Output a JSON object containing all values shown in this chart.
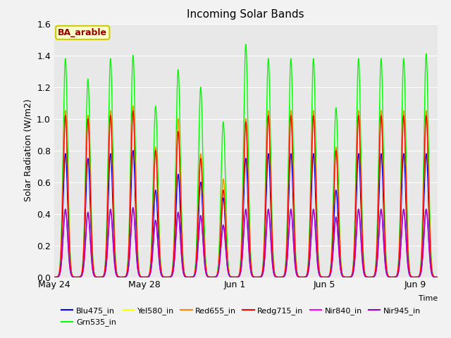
{
  "title": "Incoming Solar Bands",
  "ylabel": "Solar Radiation (W/m2)",
  "xlabel": "Time",
  "annotation_text": "BA_arable",
  "annotation_bg": "#ffffcc",
  "annotation_border": "#cccc00",
  "annotation_text_color": "#990000",
  "fig_bg_color": "#f2f2f2",
  "plot_bg_color": "#e8e8e8",
  "ylim": [
    0.0,
    1.6
  ],
  "yticks": [
    0.0,
    0.2,
    0.4,
    0.6,
    0.8,
    1.0,
    1.2,
    1.4,
    1.6
  ],
  "x_tick_labels": [
    "May 24",
    "May 28",
    "Jun 1",
    "Jun 5",
    "Jun 9"
  ],
  "series": [
    {
      "name": "Blu475_in",
      "color": "#0000ff",
      "lw": 1.0
    },
    {
      "name": "Grn535_in",
      "color": "#00ff00",
      "lw": 1.0
    },
    {
      "name": "Yel580_in",
      "color": "#ffff00",
      "lw": 1.0
    },
    {
      "name": "Red655_in",
      "color": "#ff8800",
      "lw": 1.0
    },
    {
      "name": "Redg715_in",
      "color": "#ff0000",
      "lw": 1.0
    },
    {
      "name": "Nir840_in",
      "color": "#ff00ff",
      "lw": 1.0
    },
    {
      "name": "Nir945_in",
      "color": "#9900cc",
      "lw": 1.0
    }
  ],
  "n_days": 17,
  "peaks_grn": [
    1.38,
    1.25,
    1.38,
    1.4,
    1.08,
    1.31,
    1.2,
    0.98,
    1.47,
    1.38,
    1.38,
    1.38,
    1.07,
    1.38,
    1.38,
    1.38,
    1.41
  ],
  "peaks_blu": [
    0.78,
    0.75,
    0.78,
    0.8,
    0.55,
    0.65,
    0.6,
    0.5,
    0.75,
    0.78,
    0.78,
    0.78,
    0.55,
    0.78,
    0.78,
    0.78,
    0.78
  ],
  "peaks_yel": [
    1.05,
    1.02,
    1.05,
    1.08,
    0.82,
    1.0,
    0.78,
    0.62,
    1.0,
    1.05,
    1.05,
    1.05,
    0.82,
    1.05,
    1.05,
    1.05,
    1.05
  ],
  "peaks_red655": [
    1.05,
    1.02,
    1.05,
    1.08,
    0.82,
    1.0,
    0.78,
    0.62,
    1.0,
    1.05,
    1.05,
    1.05,
    0.82,
    1.05,
    1.05,
    1.05,
    1.05
  ],
  "peaks_red715": [
    1.02,
    1.0,
    1.02,
    1.05,
    0.8,
    0.92,
    0.75,
    0.55,
    0.98,
    1.02,
    1.02,
    1.02,
    0.8,
    1.02,
    1.02,
    1.02,
    1.02
  ],
  "peaks_nir840": [
    0.42,
    0.4,
    0.42,
    0.43,
    0.35,
    0.4,
    0.38,
    0.32,
    0.42,
    0.42,
    0.42,
    0.42,
    0.37,
    0.42,
    0.42,
    0.42,
    0.42
  ],
  "peaks_nir945": [
    0.43,
    0.41,
    0.43,
    0.44,
    0.36,
    0.41,
    0.39,
    0.33,
    0.43,
    0.43,
    0.43,
    0.43,
    0.38,
    0.43,
    0.43,
    0.43,
    0.43
  ]
}
